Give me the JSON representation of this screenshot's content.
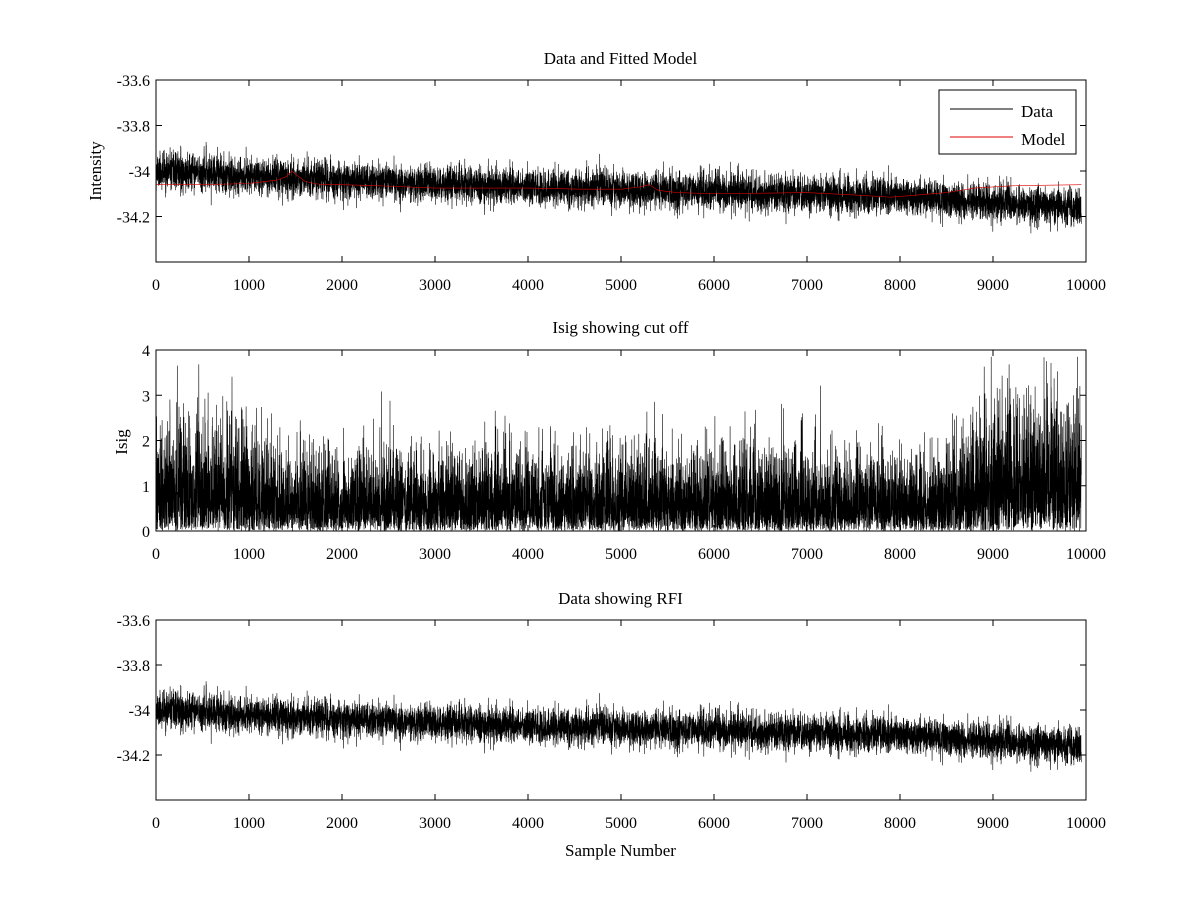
{
  "chart_data": [
    {
      "type": "line",
      "title": "Data and Fitted Model",
      "xlabel": "",
      "ylabel": "Intensity",
      "xlim": [
        0,
        10000
      ],
      "ylim": [
        -34.4,
        -33.6
      ],
      "yticks": [
        -33.6,
        -33.8,
        -34,
        -34.2
      ],
      "ytick_labels": [
        "-33.6",
        "-33.8",
        "-34",
        "-34.2"
      ],
      "xticks": [
        0,
        1000,
        2000,
        3000,
        4000,
        5000,
        6000,
        7000,
        8000,
        9000,
        10000
      ],
      "xtick_labels": [
        "0",
        "1000",
        "2000",
        "3000",
        "4000",
        "5000",
        "6000",
        "7000",
        "8000",
        "9000",
        "10000"
      ],
      "legend": {
        "position": "top-right",
        "entries": [
          "Data",
          "Model"
        ]
      },
      "series": [
        {
          "name": "Data",
          "color": "#000000",
          "style": "noise",
          "n_points": 9950,
          "trend": {
            "x": [
              0,
              2000,
              4000,
              6000,
              8000,
              9950
            ],
            "y": [
              -34.0,
              -34.04,
              -34.07,
              -34.09,
              -34.11,
              -34.16
            ]
          },
          "noise_std": 0.04,
          "seed": 11
        },
        {
          "name": "Model",
          "color": "#e00000",
          "style": "line",
          "x": [
            0,
            500,
            1000,
            1300,
            1400,
            1460,
            1520,
            1600,
            1700,
            1800,
            2000,
            2400,
            3000,
            3600,
            4000,
            4600,
            5000,
            5200,
            5300,
            5400,
            5600,
            6000,
            7000,
            7500,
            7900,
            8200,
            8500,
            8800,
            9200,
            9950
          ],
          "y": [
            -34.06,
            -34.06,
            -34.055,
            -34.04,
            -34.025,
            -34.0,
            -34.02,
            -34.045,
            -34.055,
            -34.06,
            -34.06,
            -34.065,
            -34.075,
            -34.075,
            -34.075,
            -34.08,
            -34.08,
            -34.07,
            -34.06,
            -34.085,
            -34.095,
            -34.1,
            -34.095,
            -34.105,
            -34.115,
            -34.105,
            -34.095,
            -34.075,
            -34.065,
            -34.06
          ]
        }
      ]
    },
    {
      "type": "line",
      "title": "Isig showing cut off",
      "xlabel": "",
      "ylabel": "Isig",
      "xlim": [
        0,
        10000
      ],
      "ylim": [
        0,
        4
      ],
      "yticks": [
        0,
        1,
        2,
        3,
        4
      ],
      "ytick_labels": [
        "0",
        "1",
        "2",
        "3",
        "4"
      ],
      "xticks": [
        0,
        1000,
        2000,
        3000,
        4000,
        5000,
        6000,
        7000,
        8000,
        9000,
        10000
      ],
      "xtick_labels": [
        "0",
        "1000",
        "2000",
        "3000",
        "4000",
        "5000",
        "6000",
        "7000",
        "8000",
        "9000",
        "10000"
      ],
      "series": [
        {
          "name": "Isig",
          "color": "#000000",
          "style": "abs-noise",
          "n_points": 9950,
          "scale": {
            "x": [
              0,
              1000,
              1300,
              8500,
              8900,
              9950
            ],
            "y": [
              1.15,
              1.0,
              0.82,
              0.8,
              1.35,
              1.45
            ]
          },
          "max": 3.85,
          "seed": 23
        }
      ]
    },
    {
      "type": "line",
      "title": "Data showing RFI",
      "xlabel": "Sample Number",
      "ylabel": "",
      "xlim": [
        0,
        10000
      ],
      "ylim": [
        -34.4,
        -33.6
      ],
      "yticks": [
        -33.6,
        -33.8,
        -34,
        -34.2
      ],
      "ytick_labels": [
        "-33.6",
        "-33.8",
        "-34",
        "-34.2"
      ],
      "xticks": [
        0,
        1000,
        2000,
        3000,
        4000,
        5000,
        6000,
        7000,
        8000,
        9000,
        10000
      ],
      "xtick_labels": [
        "0",
        "1000",
        "2000",
        "3000",
        "4000",
        "5000",
        "6000",
        "7000",
        "8000",
        "9000",
        "10000"
      ],
      "series": [
        {
          "name": "Data",
          "color": "#000000",
          "style": "noise",
          "n_points": 9950,
          "trend": {
            "x": [
              0,
              2000,
              4000,
              6000,
              8000,
              9950
            ],
            "y": [
              -34.0,
              -34.04,
              -34.07,
              -34.09,
              -34.11,
              -34.16
            ]
          },
          "noise_std": 0.04,
          "seed": 11
        }
      ]
    }
  ]
}
